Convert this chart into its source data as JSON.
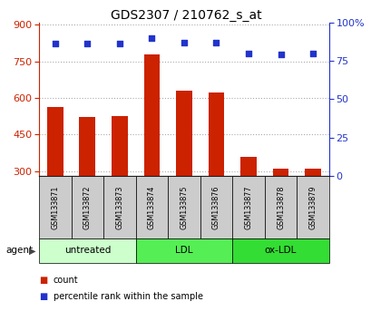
{
  "title": "GDS2307 / 210762_s_at",
  "samples": [
    "GSM133871",
    "GSM133872",
    "GSM133873",
    "GSM133874",
    "GSM133875",
    "GSM133876",
    "GSM133877",
    "GSM133878",
    "GSM133879"
  ],
  "count_values": [
    562,
    523,
    524,
    778,
    630,
    622,
    358,
    308,
    310
  ],
  "percentile_values": [
    86,
    86,
    86,
    90,
    87,
    87,
    80,
    79,
    80
  ],
  "ylim_left": [
    280,
    910
  ],
  "ylim_right": [
    0,
    100
  ],
  "yticks_left": [
    300,
    450,
    600,
    750,
    900
  ],
  "yticks_right": [
    0,
    25,
    50,
    75,
    100
  ],
  "bar_color": "#cc2200",
  "dot_color": "#2233cc",
  "bar_width": 0.5,
  "groups": [
    {
      "label": "untreated",
      "indices": [
        0,
        1,
        2
      ],
      "color": "#ccffcc"
    },
    {
      "label": "LDL",
      "indices": [
        3,
        4,
        5
      ],
      "color": "#55ee55"
    },
    {
      "label": "ox-LDL",
      "indices": [
        6,
        7,
        8
      ],
      "color": "#33dd33"
    }
  ],
  "agent_label": "agent",
  "legend_count_label": "count",
  "legend_pct_label": "percentile rank within the sample",
  "ylabel_left_color": "#cc2200",
  "ylabel_right_color": "#2233cc",
  "grid_color": "#aaaaaa",
  "sample_cell_color": "#cccccc"
}
